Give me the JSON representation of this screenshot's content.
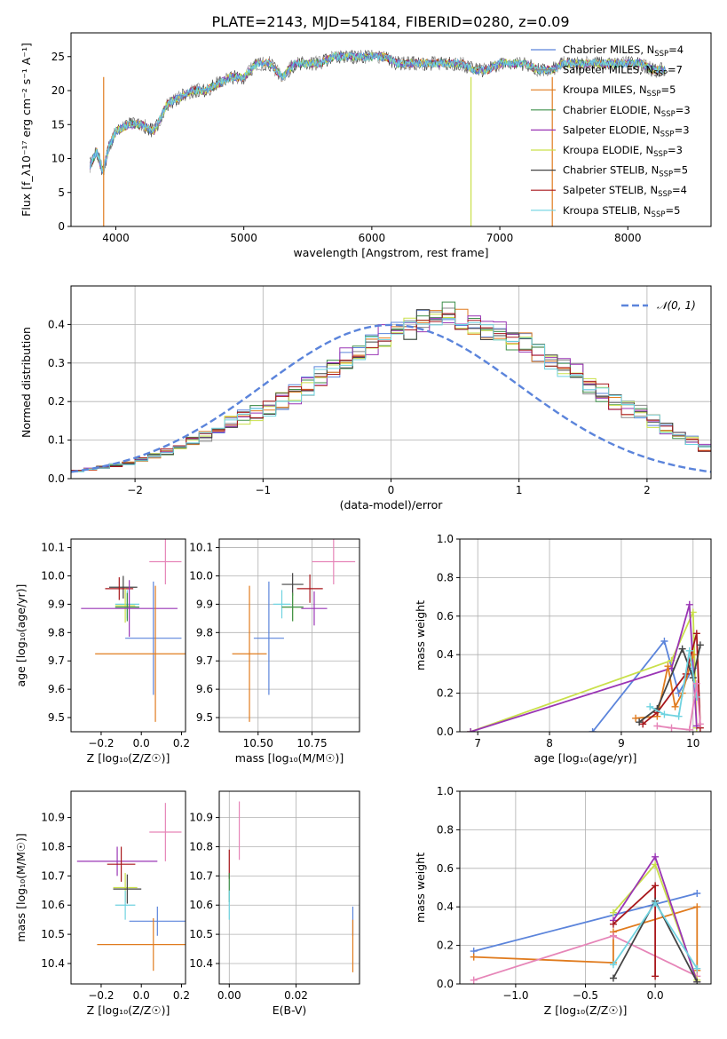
{
  "figure_title": "PLATE=2143, MJD=54184, FIBERID=0280, z=0.09",
  "colors": {
    "chabrier_miles": "#5b84db",
    "salpeter_miles": "#888888",
    "kroupa_miles": "#e07b1e",
    "chabrier_elodie": "#3d8f4a",
    "salpeter_elodie": "#9a35b5",
    "kroupa_elodie": "#c9e04a",
    "chabrier_stelib": "#444444",
    "salpeter_stelib": "#a8171c",
    "kroupa_stelib": "#6fd3e0",
    "pink": "#e685b8",
    "gaussian": "#5b84db"
  },
  "chart_data": [
    {
      "id": "spectrum",
      "type": "line",
      "xlabel": "wavelength [Angstrom, rest frame]",
      "ylabel": "Flux [f_λ10⁻¹⁷ erg cm⁻² s⁻¹ A⁻¹]",
      "xlim": [
        3650,
        8650
      ],
      "ylim": [
        0,
        28.5
      ],
      "xticks": [
        "4000",
        "5000",
        "6000",
        "7000",
        "8000"
      ],
      "yticks": [
        "0",
        "5",
        "10",
        "15",
        "20",
        "25"
      ],
      "x": [
        3800,
        3850,
        3900,
        3950,
        4000,
        4100,
        4200,
        4300,
        4400,
        4500,
        4600,
        4700,
        4800,
        4900,
        5000,
        5100,
        5200,
        5300,
        5400,
        5500,
        5600,
        5700,
        5800,
        5900,
        6000,
        6100,
        6200,
        6300,
        6400,
        6500,
        6600,
        6700,
        6800,
        6900,
        7000,
        7100,
        7200,
        7300,
        7400,
        7500,
        7600,
        7700,
        7800,
        7900,
        8000,
        8100,
        8200,
        8300
      ],
      "y": [
        9,
        11,
        8,
        12,
        14,
        15,
        15,
        14,
        18,
        19,
        20,
        20,
        21,
        22,
        22,
        24,
        24,
        22,
        24,
        24,
        24,
        25,
        25,
        25,
        25,
        25,
        24,
        24,
        24,
        24,
        24,
        24,
        23,
        23,
        24,
        24,
        24,
        23,
        23,
        24,
        24,
        24,
        24,
        24,
        24,
        24,
        23,
        23
      ],
      "grid": false,
      "legend": [
        {
          "label": "Chabrier MILES, N<sub>SSP</sub>=4",
          "text": "Chabrier MILES, N",
          "sub": "SSP",
          "tail": "=4",
          "color_key": "chabrier_miles"
        },
        {
          "label": "Salpeter MILES",
          "text": "Salpeter MILES, N",
          "sub": "SSP",
          "tail": "=7",
          "color_key": "salpeter_miles"
        },
        {
          "label": "Kroupa MILES",
          "text": "Kroupa MILES, N",
          "sub": "SSP",
          "tail": "=5",
          "color_key": "kroupa_miles"
        },
        {
          "label": "Chabrier ELODIE",
          "text": "Chabrier ELODIE, N",
          "sub": "SSP",
          "tail": "=3",
          "color_key": "chabrier_elodie"
        },
        {
          "label": "Salpeter ELODIE",
          "text": "Salpeter ELODIE, N",
          "sub": "SSP",
          "tail": "=3",
          "color_key": "salpeter_elodie"
        },
        {
          "label": "Kroupa ELODIE",
          "text": "Kroupa ELODIE, N",
          "sub": "SSP",
          "tail": "=3",
          "color_key": "kroupa_elodie"
        },
        {
          "label": "Chabrier STELIB",
          "text": "Chabrier STELIB, N",
          "sub": "SSP",
          "tail": "=5",
          "color_key": "chabrier_stelib"
        },
        {
          "label": "Salpeter STELIB",
          "text": "Salpeter STELIB, N",
          "sub": "SSP",
          "tail": "=4",
          "color_key": "salpeter_stelib"
        },
        {
          "label": "Kroupa STELIB",
          "text": "Kroupa STELIB, N",
          "sub": "SSP",
          "tail": "=5",
          "color_key": "kroupa_stelib"
        }
      ],
      "legend_placement": "right",
      "vertical_drops": [
        {
          "x": 3905,
          "color_key": "kroupa_miles"
        },
        {
          "x": 6775,
          "color_key": "kroupa_elodie"
        },
        {
          "x": 7410,
          "color_key": "kroupa_miles"
        }
      ]
    },
    {
      "id": "residuals",
      "type": "histogram",
      "xlabel": "(data-model)/error",
      "ylabel": "Normed distribution",
      "xlim": [
        -2.5,
        2.5
      ],
      "ylim": [
        0,
        0.5
      ],
      "xticks": [
        "−2",
        "−1",
        "0",
        "1",
        "2"
      ],
      "yticks": [
        "0.0",
        "0.1",
        "0.2",
        "0.3",
        "0.4"
      ],
      "grid": true,
      "bin_width": 0.1,
      "bin_start": -2.5,
      "base_values": [
        0.02,
        0.025,
        0.03,
        0.035,
        0.04,
        0.05,
        0.06,
        0.07,
        0.08,
        0.1,
        0.11,
        0.13,
        0.15,
        0.16,
        0.17,
        0.18,
        0.2,
        0.22,
        0.24,
        0.27,
        0.29,
        0.31,
        0.33,
        0.35,
        0.37,
        0.38,
        0.39,
        0.41,
        0.42,
        0.43,
        0.41,
        0.4,
        0.39,
        0.38,
        0.36,
        0.35,
        0.33,
        0.31,
        0.29,
        0.27,
        0.24,
        0.22,
        0.2,
        0.18,
        0.17,
        0.15,
        0.13,
        0.11,
        0.1,
        0.08
      ],
      "legend": [
        {
          "label": "𝒩(0, 1)",
          "color_key": "gaussian"
        }
      ],
      "legend_placement": "top-right"
    },
    {
      "id": "age_vs_Z",
      "type": "errorbar",
      "xlabel": "Z [log₁₀(Z/Z☉)]",
      "ylabel": "age  [log₁₀(age/yr)]",
      "xlim": [
        -0.35,
        0.22
      ],
      "ylim": [
        9.45,
        10.13
      ],
      "xticks": [
        "−0.2",
        "0.0",
        "0.2"
      ],
      "yticks": [
        "9.5",
        "9.6",
        "9.7",
        "9.8",
        "9.9",
        "10.0",
        "10.1"
      ],
      "grid": false,
      "points": [
        {
          "x": 0.12,
          "y": 10.05,
          "xerr": 0.08,
          "yerr": 0.08,
          "color_key": "pink"
        },
        {
          "x": -0.09,
          "y": 9.96,
          "xerr": 0.07,
          "yerr": 0.04,
          "color_key": "chabrier_stelib"
        },
        {
          "x": -0.11,
          "y": 9.955,
          "xerr": 0.07,
          "yerr": 0.04,
          "color_key": "salpeter_stelib"
        },
        {
          "x": -0.07,
          "y": 9.9,
          "xerr": 0.06,
          "yerr": 0.05,
          "color_key": "kroupa_stelib"
        },
        {
          "x": -0.08,
          "y": 9.895,
          "xerr": 0.05,
          "yerr": 0.06,
          "color_key": "kroupa_elodie"
        },
        {
          "x": -0.07,
          "y": 9.89,
          "xerr": 0.06,
          "yerr": 0.05,
          "color_key": "chabrier_elodie"
        },
        {
          "x": -0.06,
          "y": 9.885,
          "xerr": 0.24,
          "yerr": 0.1,
          "color_key": "salpeter_elodie"
        },
        {
          "x": 0.06,
          "y": 9.78,
          "xerr": 0.14,
          "yerr": 0.2,
          "color_key": "chabrier_miles"
        },
        {
          "x": 0.07,
          "y": 9.725,
          "xerr": 0.3,
          "yerr": 0.24,
          "color_key": "kroupa_miles"
        }
      ]
    },
    {
      "id": "age_vs_mass",
      "type": "errorbar",
      "xlabel": "mass [log₁₀(M/M☉)]",
      "ylabel": "",
      "xlim": [
        10.32,
        10.97
      ],
      "ylim": [
        9.45,
        10.13
      ],
      "xticks": [
        "10.50",
        "10.75"
      ],
      "yticks": [
        "9.5",
        "9.6",
        "9.7",
        "9.8",
        "9.9",
        "10.0",
        "10.1"
      ],
      "grid": true,
      "points": [
        {
          "x": 10.85,
          "y": 10.05,
          "xerr": 0.1,
          "yerr": 0.08,
          "color_key": "pink"
        },
        {
          "x": 10.66,
          "y": 9.97,
          "xerr": 0.05,
          "yerr": 0.04,
          "color_key": "chabrier_stelib"
        },
        {
          "x": 10.74,
          "y": 9.955,
          "xerr": 0.06,
          "yerr": 0.05,
          "color_key": "salpeter_stelib"
        },
        {
          "x": 10.61,
          "y": 9.9,
          "xerr": 0.04,
          "yerr": 0.05,
          "color_key": "kroupa_stelib"
        },
        {
          "x": 10.66,
          "y": 9.89,
          "xerr": 0.05,
          "yerr": 0.05,
          "color_key": "kroupa_elodie"
        },
        {
          "x": 10.66,
          "y": 9.89,
          "xerr": 0.05,
          "yerr": 0.05,
          "color_key": "chabrier_elodie"
        },
        {
          "x": 10.76,
          "y": 9.885,
          "xerr": 0.06,
          "yerr": 0.06,
          "color_key": "salpeter_elodie"
        },
        {
          "x": 10.55,
          "y": 9.78,
          "xerr": 0.07,
          "yerr": 0.2,
          "color_key": "chabrier_miles"
        },
        {
          "x": 10.46,
          "y": 9.725,
          "xerr": 0.08,
          "yerr": 0.24,
          "color_key": "kroupa_miles"
        }
      ]
    },
    {
      "id": "massweight_vs_age",
      "type": "line",
      "xlabel": "age  [log₁₀(age/yr)]",
      "ylabel": "mass weight",
      "xlim": [
        6.75,
        10.25
      ],
      "ylim": [
        0,
        1
      ],
      "xticks": [
        "7",
        "8",
        "9",
        "10"
      ],
      "yticks": [
        "0.0",
        "0.2",
        "0.4",
        "0.6",
        "0.8",
        "1.0"
      ],
      "grid": true,
      "series": [
        {
          "color_key": "chabrier_miles",
          "x": [
            8.6,
            9.6,
            9.8,
            10.0
          ],
          "y": [
            0.0,
            0.47,
            0.2,
            0.33
          ]
        },
        {
          "color_key": "kroupa_elodie",
          "x": [
            6.9,
            9.7,
            10.0,
            10.05
          ],
          "y": [
            0.0,
            0.37,
            0.62,
            0.02
          ]
        },
        {
          "color_key": "salpeter_elodie",
          "x": [
            6.9,
            9.7,
            9.95,
            10.05
          ],
          "y": [
            0.0,
            0.33,
            0.66,
            0.03
          ]
        },
        {
          "color_key": "kroupa_miles",
          "x": [
            9.2,
            9.5,
            9.65,
            9.75,
            9.85,
            10.0
          ],
          "y": [
            0.07,
            0.08,
            0.34,
            0.13,
            0.2,
            0.4
          ]
        },
        {
          "color_key": "salpeter_stelib",
          "x": [
            9.3,
            9.5,
            9.9,
            10.05,
            10.1
          ],
          "y": [
            0.04,
            0.1,
            0.3,
            0.51,
            0.02
          ]
        },
        {
          "color_key": "chabrier_stelib",
          "x": [
            9.25,
            9.5,
            9.85,
            10.0,
            10.1
          ],
          "y": [
            0.05,
            0.12,
            0.43,
            0.28,
            0.45
          ]
        },
        {
          "color_key": "kroupa_stelib",
          "x": [
            9.4,
            9.6,
            9.8,
            9.95,
            10.05
          ],
          "y": [
            0.13,
            0.09,
            0.08,
            0.42,
            0.18
          ]
        },
        {
          "color_key": "pink",
          "x": [
            9.5,
            9.7,
            9.95,
            10.05,
            10.1
          ],
          "y": [
            0.03,
            0.02,
            0.01,
            0.25,
            0.04
          ]
        }
      ]
    },
    {
      "id": "mass_vs_Z",
      "type": "errorbar",
      "xlabel": "Z [log₁₀(Z/Z☉)]",
      "ylabel": "mass [log₁₀(M/M☉)]",
      "xlim": [
        -0.35,
        0.22
      ],
      "ylim": [
        10.33,
        10.99
      ],
      "xticks": [
        "−0.2",
        "0.0",
        "0.2"
      ],
      "yticks": [
        "10.4",
        "10.5",
        "10.6",
        "10.7",
        "10.8",
        "10.9"
      ],
      "grid": false,
      "points": [
        {
          "x": 0.12,
          "y": 10.85,
          "xerr": 0.08,
          "yerr": 0.1,
          "color_key": "pink"
        },
        {
          "x": -0.12,
          "y": 10.75,
          "xerr": 0.2,
          "yerr": 0.05,
          "color_key": "salpeter_elodie"
        },
        {
          "x": -0.1,
          "y": 10.74,
          "xerr": 0.07,
          "yerr": 0.06,
          "color_key": "salpeter_stelib"
        },
        {
          "x": -0.08,
          "y": 10.66,
          "xerr": 0.06,
          "yerr": 0.05,
          "color_key": "kroupa_elodie"
        },
        {
          "x": -0.07,
          "y": 10.655,
          "xerr": 0.07,
          "yerr": 0.05,
          "color_key": "chabrier_stelib"
        },
        {
          "x": -0.08,
          "y": 10.6,
          "xerr": 0.05,
          "yerr": 0.05,
          "color_key": "kroupa_stelib"
        },
        {
          "x": 0.08,
          "y": 10.545,
          "xerr": 0.14,
          "yerr": 0.05,
          "color_key": "chabrier_miles"
        },
        {
          "x": 0.06,
          "y": 10.465,
          "xerr": 0.28,
          "yerr": 0.09,
          "color_key": "kroupa_miles"
        }
      ]
    },
    {
      "id": "mass_vs_ebv",
      "type": "errorbar",
      "xlabel": "E(B-V)",
      "ylabel": "",
      "xlim": [
        -0.003,
        0.039
      ],
      "ylim": [
        10.33,
        10.99
      ],
      "xticks": [
        "0.00",
        "0.02"
      ],
      "yticks": [
        "10.4",
        "10.5",
        "10.6",
        "10.7",
        "10.8",
        "10.9"
      ],
      "grid": true,
      "points": [
        {
          "x": 0.003,
          "y": 10.855,
          "xerr": 0.0,
          "yerr": 0.1,
          "color_key": "pink"
        },
        {
          "x": 0.0,
          "y": 10.74,
          "xerr": 0.0,
          "yerr": 0.05,
          "color_key": "salpeter_stelib"
        },
        {
          "x": 0.0,
          "y": 10.66,
          "xerr": 0.0,
          "yerr": 0.05,
          "color_key": "chabrier_elodie"
        },
        {
          "x": 0.0,
          "y": 10.6,
          "xerr": 0.0,
          "yerr": 0.05,
          "color_key": "kroupa_stelib"
        },
        {
          "x": 0.037,
          "y": 10.545,
          "xerr": 0.0,
          "yerr": 0.05,
          "color_key": "chabrier_miles"
        },
        {
          "x": 0.037,
          "y": 10.46,
          "xerr": 0.0,
          "yerr": 0.09,
          "color_key": "kroupa_miles"
        }
      ]
    },
    {
      "id": "massweight_vs_Z",
      "type": "line",
      "xlabel": "Z [log₁₀(Z/Z☉)]",
      "ylabel": "mass weight",
      "xlim": [
        -1.4,
        0.4
      ],
      "ylim": [
        0,
        1
      ],
      "xticks": [
        "−1.0",
        "−0.5",
        "0.0"
      ],
      "yticks": [
        "0.0",
        "0.2",
        "0.4",
        "0.6",
        "0.8",
        "1.0"
      ],
      "grid": true,
      "series": [
        {
          "color_key": "chabrier_miles",
          "x": [
            -1.3,
            0.3
          ],
          "y": [
            0.17,
            0.47
          ]
        },
        {
          "color_key": "kroupa_miles",
          "x": [
            -1.3,
            -0.3,
            -0.3,
            0.3,
            0.3
          ],
          "y": [
            0.14,
            0.11,
            0.27,
            0.4,
            0.07
          ]
        },
        {
          "color_key": "pink",
          "x": [
            -1.3,
            -0.3,
            0.3
          ],
          "y": [
            0.02,
            0.25,
            0.04
          ]
        },
        {
          "color_key": "kroupa_elodie",
          "x": [
            -0.3,
            0.0,
            0.3
          ],
          "y": [
            0.37,
            0.62,
            0.02
          ]
        },
        {
          "color_key": "salpeter_elodie",
          "x": [
            -0.3,
            0.0,
            0.3
          ],
          "y": [
            0.33,
            0.66,
            0.01
          ]
        },
        {
          "color_key": "salpeter_stelib",
          "x": [
            -0.3,
            0.0,
            0.0
          ],
          "y": [
            0.31,
            0.51,
            0.04
          ]
        },
        {
          "color_key": "chabrier_stelib",
          "x": [
            -0.3,
            0.0,
            0.3
          ],
          "y": [
            0.03,
            0.43,
            0.01
          ]
        },
        {
          "color_key": "kroupa_stelib",
          "x": [
            -0.3,
            0.0,
            0.3
          ],
          "y": [
            0.1,
            0.42,
            0.08
          ]
        }
      ]
    }
  ]
}
